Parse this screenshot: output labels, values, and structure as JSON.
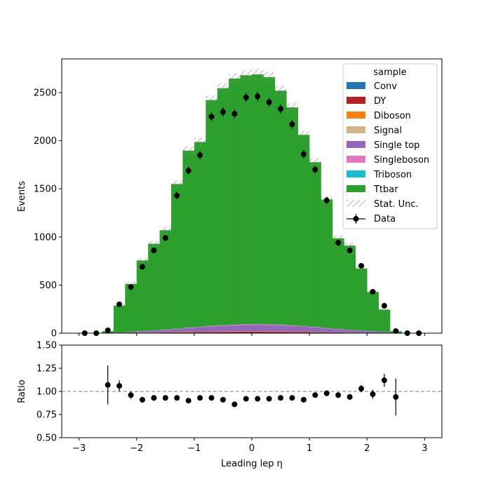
{
  "chart_data": [
    {
      "type": "stacked-histogram",
      "ylabel": "Events",
      "xlim": [
        -3.3,
        3.3
      ],
      "ylim": [
        0,
        2850
      ],
      "yticks": [
        0,
        500,
        1000,
        1500,
        2000,
        2500
      ],
      "bin_edges": [
        -2.6,
        -2.4,
        -2.2,
        -2.0,
        -1.8,
        -1.6,
        -1.4,
        -1.2,
        -1.0,
        -0.8,
        -0.6,
        -0.4,
        -0.2,
        0.0,
        0.2,
        0.4,
        0.6,
        0.8,
        1.0,
        1.2,
        1.4,
        1.6,
        1.8,
        2.0,
        2.2,
        2.4,
        2.6
      ],
      "series": [
        {
          "name": "Conv",
          "color": "#1f77b4",
          "values": [
            0,
            0,
            1,
            1,
            1,
            2,
            2,
            2,
            3,
            3,
            3,
            4,
            4,
            4,
            4,
            4,
            3,
            3,
            3,
            2,
            2,
            2,
            1,
            1,
            1,
            0
          ]
        },
        {
          "name": "DY",
          "color": "#b22222",
          "values": [
            0,
            1,
            2,
            3,
            4,
            5,
            6,
            7,
            8,
            9,
            10,
            10,
            11,
            11,
            10,
            10,
            9,
            8,
            7,
            6,
            5,
            4,
            3,
            2,
            1,
            0
          ]
        },
        {
          "name": "Diboson",
          "color": "#ff7f0e",
          "values": [
            0,
            0,
            1,
            1,
            1,
            1,
            2,
            2,
            2,
            2,
            2,
            2,
            2,
            2,
            2,
            2,
            2,
            2,
            2,
            1,
            1,
            1,
            1,
            1,
            0,
            0
          ]
        },
        {
          "name": "Signal",
          "color": "#d2b48c",
          "values": [
            0,
            0,
            0,
            1,
            1,
            1,
            1,
            1,
            1,
            1,
            1,
            1,
            1,
            1,
            1,
            1,
            1,
            1,
            1,
            1,
            1,
            1,
            0,
            0,
            0,
            0
          ]
        },
        {
          "name": "Single top",
          "color": "#9467bd",
          "values": [
            2,
            5,
            10,
            15,
            20,
            25,
            32,
            40,
            48,
            55,
            60,
            65,
            68,
            70,
            68,
            65,
            60,
            55,
            48,
            40,
            32,
            25,
            20,
            15,
            10,
            2
          ]
        },
        {
          "name": "Singleboson",
          "color": "#e377c2",
          "values": [
            0,
            1,
            1,
            2,
            2,
            3,
            3,
            4,
            4,
            5,
            5,
            5,
            6,
            6,
            5,
            5,
            5,
            4,
            4,
            3,
            3,
            2,
            2,
            1,
            1,
            0
          ]
        },
        {
          "name": "Triboson",
          "color": "#17becf",
          "values": [
            0,
            0,
            0,
            0,
            0,
            0,
            0,
            1,
            1,
            1,
            1,
            1,
            1,
            1,
            1,
            1,
            1,
            1,
            0,
            0,
            0,
            0,
            0,
            0,
            0,
            0
          ]
        },
        {
          "name": "Ttbar",
          "color": "#2ca02c",
          "values": [
            18,
            280,
            497,
            733,
            900,
            1033,
            1504,
            1840,
            1920,
            2347,
            2464,
            2558,
            2587,
            2594,
            2569,
            2432,
            2265,
            1987,
            1712,
            1336,
            942,
            875,
            645,
            409,
            232,
            18
          ]
        }
      ],
      "stat_unc_label": "Stat. Unc.",
      "data": {
        "name": "Data",
        "x": [
          -2.9,
          -2.7,
          -2.5,
          -2.3,
          -2.1,
          -1.9,
          -1.7,
          -1.5,
          -1.3,
          -1.1,
          -0.9,
          -0.7,
          -0.5,
          -0.3,
          -0.1,
          0.1,
          0.3,
          0.5,
          0.7,
          0.9,
          1.1,
          1.3,
          1.5,
          1.7,
          1.9,
          2.1,
          2.3,
          2.5,
          2.7,
          2.9
        ],
        "y": [
          0,
          0,
          30,
          300,
          480,
          690,
          860,
          990,
          1430,
          1690,
          1850,
          2250,
          2300,
          2280,
          2450,
          2460,
          2400,
          2330,
          2170,
          1860,
          1700,
          1380,
          940,
          860,
          700,
          430,
          285,
          22,
          0,
          0
        ],
        "yerr": [
          0,
          0,
          6,
          17,
          22,
          26,
          29,
          31,
          38,
          41,
          43,
          47,
          48,
          48,
          49,
          50,
          49,
          48,
          47,
          43,
          41,
          37,
          31,
          29,
          26,
          21,
          17,
          5,
          0,
          0
        ]
      },
      "legend": {
        "title": "sample",
        "loc": "upper right"
      }
    },
    {
      "type": "scatter",
      "xlabel": "Leading lep η",
      "ylabel": "Ratio",
      "xlim": [
        -3.3,
        3.3
      ],
      "ylim": [
        0.5,
        1.5
      ],
      "xticks": [
        -3,
        -2,
        -1,
        0,
        1,
        2,
        3
      ],
      "yticks": [
        "0.50",
        "0.75",
        "1.00",
        "1.25",
        "1.50"
      ],
      "reference_line": 1.0,
      "x": [
        -2.5,
        -2.3,
        -2.1,
        -1.9,
        -1.7,
        -1.5,
        -1.3,
        -1.1,
        -0.9,
        -0.7,
        -0.5,
        -0.3,
        -0.1,
        0.1,
        0.3,
        0.5,
        0.7,
        0.9,
        1.1,
        1.3,
        1.5,
        1.7,
        1.9,
        2.1,
        2.3,
        2.5
      ],
      "y": [
        1.07,
        1.06,
        0.96,
        0.91,
        0.93,
        0.93,
        0.93,
        0.9,
        0.93,
        0.93,
        0.91,
        0.86,
        0.92,
        0.92,
        0.92,
        0.93,
        0.93,
        0.91,
        0.96,
        0.98,
        0.96,
        0.94,
        1.03,
        0.97,
        1.12,
        0.94
      ],
      "yerr": [
        0.21,
        0.06,
        0.04,
        0.03,
        0.03,
        0.03,
        0.02,
        0.02,
        0.02,
        0.02,
        0.02,
        0.02,
        0.02,
        0.02,
        0.02,
        0.02,
        0.02,
        0.02,
        0.02,
        0.03,
        0.03,
        0.03,
        0.04,
        0.05,
        0.07,
        0.2
      ]
    }
  ]
}
